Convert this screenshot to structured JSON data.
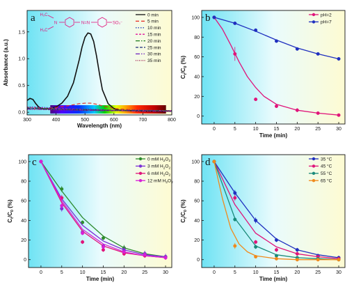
{
  "chart_data": [
    {
      "panel": "a",
      "type": "line",
      "xlabel": "Wavelength (nm)",
      "ylabel": "Absorbance (a.u.)",
      "xlim": [
        300,
        800
      ],
      "ylim": [
        -0.05,
        1.9
      ],
      "xticks": [
        300,
        400,
        500,
        600,
        700,
        800
      ],
      "yticks": [
        0.0,
        0.5,
        1.0,
        1.5
      ],
      "ytick_labels": [
        "0.0",
        "0.5",
        "1.0",
        "1.5"
      ],
      "legend_position": "top-right",
      "colorbar_range": [
        380,
        780
      ],
      "series": [
        {
          "name": "0 min",
          "color": "#111111",
          "dash": "",
          "x": [
            300,
            310,
            320,
            330,
            340,
            350,
            360,
            380,
            400,
            420,
            440,
            460,
            480,
            490,
            500,
            510,
            520,
            530,
            540,
            550,
            560,
            580,
            600,
            620,
            650,
            700,
            750,
            800
          ],
          "values": [
            0.22,
            0.26,
            0.24,
            0.16,
            0.1,
            0.07,
            0.06,
            0.07,
            0.1,
            0.17,
            0.3,
            0.55,
            0.98,
            1.22,
            1.4,
            1.48,
            1.46,
            1.32,
            1.05,
            0.72,
            0.42,
            0.16,
            0.07,
            0.04,
            0.03,
            0.02,
            0.02,
            0.02
          ]
        },
        {
          "name": "5 min",
          "color": "#e5261f",
          "dash": "5,3",
          "x": [
            300,
            330,
            360,
            400,
            440,
            480,
            500,
            520,
            540,
            560,
            600,
            650,
            700,
            800
          ],
          "values": [
            0.06,
            0.07,
            0.07,
            0.09,
            0.12,
            0.16,
            0.17,
            0.17,
            0.15,
            0.12,
            0.07,
            0.05,
            0.04,
            0.03
          ]
        },
        {
          "name": "10 min",
          "color": "#1f3fbf",
          "dash": "1.5,2",
          "x": [
            300,
            330,
            360,
            400,
            450,
            500,
            550,
            600,
            700,
            800
          ],
          "values": [
            0.1,
            0.1,
            0.09,
            0.08,
            0.07,
            0.06,
            0.05,
            0.04,
            0.04,
            0.03
          ]
        },
        {
          "name": "15 min",
          "color": "#e0149c",
          "dash": "3,2",
          "x": [
            300,
            330,
            360,
            400,
            450,
            500,
            550,
            600,
            700,
            800
          ],
          "values": [
            0.09,
            0.09,
            0.08,
            0.07,
            0.06,
            0.05,
            0.05,
            0.04,
            0.03,
            0.03
          ]
        },
        {
          "name": "20 min",
          "color": "#1a7a1a",
          "dash": "6,2,1.5,2",
          "x": [
            300,
            330,
            360,
            400,
            450,
            500,
            550,
            600,
            700,
            800
          ],
          "values": [
            0.08,
            0.08,
            0.07,
            0.06,
            0.05,
            0.05,
            0.04,
            0.04,
            0.03,
            0.03
          ]
        },
        {
          "name": "25 min",
          "color": "#1a2a7a",
          "dash": "4,2",
          "x": [
            300,
            330,
            360,
            400,
            450,
            500,
            550,
            600,
            700,
            800
          ],
          "values": [
            0.07,
            0.07,
            0.06,
            0.05,
            0.05,
            0.04,
            0.04,
            0.03,
            0.03,
            0.02
          ]
        },
        {
          "name": "30 min",
          "color": "#6a1fbf",
          "dash": "6,2,1.5,2,1.5,2",
          "x": [
            300,
            330,
            360,
            400,
            450,
            500,
            550,
            600,
            700,
            800
          ],
          "values": [
            0.06,
            0.06,
            0.05,
            0.05,
            0.04,
            0.04,
            0.03,
            0.03,
            0.02,
            0.02
          ]
        },
        {
          "name": "35 min",
          "color": "#9b1b50",
          "dash": "1,1.5",
          "x": [
            300,
            330,
            360,
            400,
            450,
            500,
            550,
            600,
            700,
            800
          ],
          "values": [
            0.05,
            0.05,
            0.05,
            0.04,
            0.04,
            0.03,
            0.03,
            0.03,
            0.02,
            0.02
          ]
        }
      ]
    },
    {
      "panel": "b",
      "type": "line",
      "xlabel": "Time (min)",
      "ylabel": "C",
      "ylabel_sub": "t",
      "ylabel_mid": "/C",
      "ylabel_sub2": "0",
      "ylabel_tail": " (%)",
      "xlim": [
        -3,
        31.5
      ],
      "ylim": [
        -8,
        107
      ],
      "xticks": [
        0,
        5,
        10,
        15,
        20,
        25,
        30
      ],
      "yticks": [
        0,
        20,
        40,
        60,
        80,
        100
      ],
      "legend_position": "top-right",
      "series": [
        {
          "name": "pH=2",
          "color": "#e0147a",
          "x": [
            0,
            5,
            10,
            15,
            20,
            25,
            30
          ],
          "values": [
            100,
            63,
            17,
            10,
            6,
            3,
            1
          ],
          "err": [
            0,
            7,
            0,
            0,
            2,
            0,
            0
          ],
          "fit": [
            [
              0,
              100
            ],
            [
              2,
              88
            ],
            [
              4,
              72
            ],
            [
              6,
              55
            ],
            [
              8,
              40
            ],
            [
              10,
              29
            ],
            [
              12,
              20
            ],
            [
              15,
              12
            ],
            [
              20,
              6
            ],
            [
              25,
              3
            ],
            [
              30,
              1
            ]
          ]
        },
        {
          "name": "pH=7",
          "color": "#1f2fbf",
          "x": [
            0,
            5,
            10,
            15,
            20,
            25,
            30
          ],
          "values": [
            100,
            94,
            87,
            76,
            68,
            63,
            58
          ],
          "err": [
            0,
            0,
            0,
            0,
            0,
            0,
            0
          ],
          "fit": [
            [
              0,
              100
            ],
            [
              5,
              94
            ],
            [
              10,
              86
            ],
            [
              15,
              77
            ],
            [
              20,
              69
            ],
            [
              25,
              63
            ],
            [
              30,
              58
            ]
          ]
        }
      ]
    },
    {
      "panel": "c",
      "type": "line",
      "xlabel": "Time (min)",
      "ylabel": "C",
      "ylabel_sub": "t",
      "ylabel_mid": "/C",
      "ylabel_sub2": "0",
      "ylabel_tail": " (%)",
      "xlim": [
        -3,
        31.5
      ],
      "ylim": [
        -8,
        107
      ],
      "xticks": [
        0,
        5,
        10,
        15,
        20,
        25,
        30
      ],
      "yticks": [
        0,
        20,
        40,
        60,
        80,
        100
      ],
      "legend_position": "top-right",
      "series": [
        {
          "name": "0 mM H",
          "sub": "2",
          "mid": "O",
          "sub2": "2",
          "color": "#2e8b2e",
          "x": [
            0,
            5,
            10,
            15,
            20,
            25,
            30
          ],
          "values": [
            100,
            72,
            38,
            22,
            12,
            6,
            3
          ],
          "err": [
            0,
            3,
            2,
            2,
            3,
            3,
            2
          ],
          "fit": [
            [
              0,
              100
            ],
            [
              5,
              70
            ],
            [
              10,
              43
            ],
            [
              15,
              24
            ],
            [
              20,
              12
            ],
            [
              25,
              6
            ],
            [
              30,
              3
            ]
          ]
        },
        {
          "name": "3 mM H",
          "sub": "2",
          "mid": "O",
          "sub2": "2",
          "color": "#7a2fd6",
          "x": [
            0,
            5,
            10,
            15,
            20,
            25,
            30
          ],
          "values": [
            100,
            52,
            28,
            14,
            10,
            6,
            3
          ],
          "err": [
            0,
            3,
            2,
            2,
            3,
            3,
            3
          ],
          "fit": [
            [
              0,
              100
            ],
            [
              5,
              62
            ],
            [
              10,
              35
            ],
            [
              15,
              19
            ],
            [
              20,
              10
            ],
            [
              25,
              5
            ],
            [
              30,
              3
            ]
          ]
        },
        {
          "name": "6 mM H",
          "sub": "2",
          "mid": "O",
          "sub2": "2",
          "color": "#e0147a",
          "x": [
            0,
            5,
            10,
            15,
            20,
            25,
            30
          ],
          "values": [
            100,
            63,
            18,
            10,
            6,
            4,
            2
          ],
          "err": [
            0,
            3,
            2,
            2,
            2,
            2,
            2
          ],
          "fit": [
            [
              0,
              100
            ],
            [
              5,
              58
            ],
            [
              10,
              29
            ],
            [
              15,
              14
            ],
            [
              20,
              7
            ],
            [
              25,
              4
            ],
            [
              30,
              2
            ]
          ]
        },
        {
          "name": "12 mM H",
          "sub": "2",
          "mid": "O",
          "sub2": "2",
          "color": "#d81fd8",
          "x": [
            0,
            5,
            10,
            15,
            20,
            25,
            30
          ],
          "values": [
            100,
            55,
            27,
            13,
            8,
            5,
            2
          ],
          "err": [
            0,
            3,
            2,
            2,
            2,
            2,
            2
          ],
          "fit": [
            [
              0,
              100
            ],
            [
              5,
              60
            ],
            [
              10,
              31
            ],
            [
              15,
              16
            ],
            [
              20,
              8
            ],
            [
              25,
              4
            ],
            [
              30,
              2
            ]
          ]
        }
      ]
    },
    {
      "panel": "d",
      "type": "line",
      "xlabel": "Time (min)",
      "ylabel": "C",
      "ylabel_sub": "t",
      "ylabel_mid": "/C",
      "ylabel_sub2": "0",
      "ylabel_tail": " (%)",
      "xlim": [
        -3,
        31.5
      ],
      "ylim": [
        -8,
        107
      ],
      "xticks": [
        0,
        5,
        10,
        15,
        20,
        25,
        30
      ],
      "yticks": [
        0,
        20,
        40,
        60,
        80,
        100
      ],
      "legend_position": "top-right",
      "series": [
        {
          "name": "35 °C",
          "color": "#1f2fbf",
          "x": [
            0,
            5,
            10,
            15,
            20,
            25,
            30
          ],
          "values": [
            100,
            68,
            40,
            20,
            10,
            4,
            2
          ],
          "err": [
            0,
            3,
            3,
            2,
            2,
            2,
            2
          ],
          "fit": [
            [
              0,
              100
            ],
            [
              5,
              68
            ],
            [
              10,
              40
            ],
            [
              15,
              21
            ],
            [
              20,
              10
            ],
            [
              25,
              5
            ],
            [
              30,
              2
            ]
          ]
        },
        {
          "name": "45 °C",
          "color": "#e0147a",
          "x": [
            0,
            5,
            10,
            15,
            20,
            25,
            30
          ],
          "values": [
            100,
            63,
            18,
            10,
            6,
            3,
            1
          ],
          "err": [
            0,
            3,
            2,
            2,
            2,
            2,
            1
          ],
          "fit": [
            [
              0,
              100
            ],
            [
              5,
              56
            ],
            [
              10,
              27
            ],
            [
              15,
              13
            ],
            [
              20,
              6
            ],
            [
              25,
              3
            ],
            [
              30,
              1
            ]
          ]
        },
        {
          "name": "55 °C",
          "color": "#1a8a7a",
          "x": [
            0,
            5,
            10,
            15,
            20,
            25,
            30
          ],
          "values": [
            100,
            41,
            13,
            4,
            2,
            1,
            0
          ],
          "err": [
            0,
            2,
            2,
            1,
            1,
            1,
            0
          ],
          "fit": [
            [
              0,
              100
            ],
            [
              5,
              42
            ],
            [
              10,
              14
            ],
            [
              15,
              5
            ],
            [
              20,
              2
            ],
            [
              25,
              1
            ],
            [
              30,
              0
            ]
          ]
        },
        {
          "name": "65 °C",
          "color": "#f08a1c",
          "x": [
            0,
            5,
            10,
            15,
            20,
            25,
            30
          ],
          "values": [
            100,
            14,
            3,
            1,
            0,
            0,
            0
          ],
          "err": [
            0,
            3,
            1,
            0,
            0,
            0,
            0
          ],
          "fit": [
            [
              0,
              100
            ],
            [
              2,
              62
            ],
            [
              4,
              32
            ],
            [
              6,
              16
            ],
            [
              8,
              8
            ],
            [
              10,
              4
            ],
            [
              15,
              1
            ],
            [
              20,
              0
            ],
            [
              30,
              0
            ]
          ]
        }
      ]
    }
  ]
}
